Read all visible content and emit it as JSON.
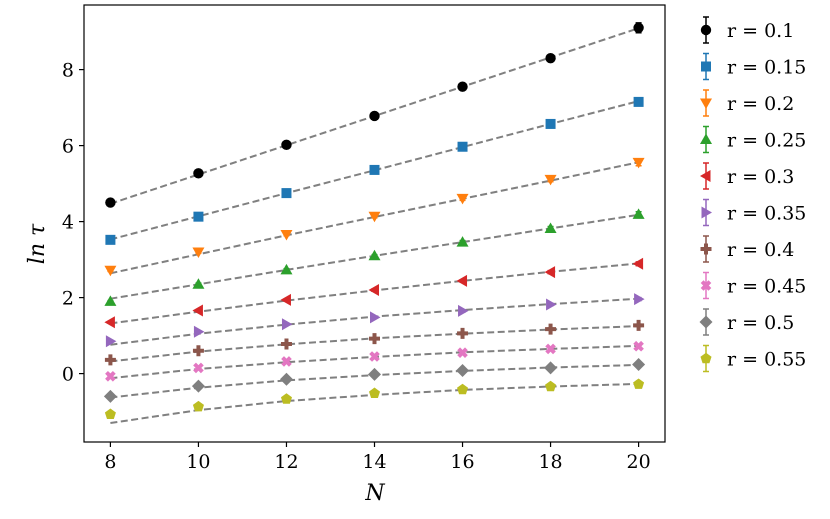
{
  "chart_data": {
    "type": "scatter",
    "xlabel": "N",
    "ylabel": "ln τ",
    "xlim": [
      7.4,
      20.6
    ],
    "ylim": [
      -1.8,
      9.7
    ],
    "x_ticks": [
      8,
      10,
      12,
      14,
      16,
      18,
      20
    ],
    "y_ticks": [
      0,
      2,
      4,
      6,
      8
    ],
    "x": [
      8,
      10,
      12,
      14,
      16,
      18,
      20
    ],
    "grid": false,
    "legend_position": "outside-right",
    "fit_line_color": "#808080",
    "series": [
      {
        "name": "r = 0.1",
        "r": "0.1",
        "color": "#000000",
        "marker": "circle",
        "values": [
          4.5,
          5.27,
          6.02,
          6.78,
          7.55,
          8.3,
          9.1
        ],
        "errors": [
          0.03,
          0.03,
          0.03,
          0.04,
          0.05,
          0.06,
          0.13
        ],
        "fit": [
          4.47,
          5.24,
          6.01,
          6.78,
          7.55,
          8.32,
          9.09
        ]
      },
      {
        "name": "r = 0.15",
        "r": "0.15",
        "color": "#1f77b4",
        "marker": "square",
        "values": [
          3.52,
          4.13,
          4.75,
          5.36,
          5.97,
          6.57,
          7.15
        ],
        "errors": [
          0.03,
          0.03,
          0.03,
          0.04,
          0.04,
          0.06,
          0.1
        ],
        "fit": [
          3.53,
          4.14,
          4.75,
          5.35,
          5.96,
          6.57,
          7.17
        ]
      },
      {
        "name": "r = 0.2",
        "r": "0.2",
        "color": "#ff7f0e",
        "marker": "triangle-down",
        "values": [
          2.72,
          3.2,
          3.66,
          4.14,
          4.61,
          5.11,
          5.56
        ],
        "errors": [
          0.03,
          0.03,
          0.03,
          0.04,
          0.05,
          0.06,
          0.09
        ],
        "fit": [
          2.64,
          3.14,
          3.64,
          4.12,
          4.6,
          5.08,
          5.56
        ]
      },
      {
        "name": "r = 0.25",
        "r": "0.25",
        "color": "#2ca02c",
        "marker": "triangle-up",
        "values": [
          1.9,
          2.35,
          2.73,
          3.1,
          3.46,
          3.82,
          4.19
        ],
        "errors": [
          0.02,
          0.03,
          0.03,
          0.03,
          0.04,
          0.05,
          0.07
        ],
        "fit": [
          1.97,
          2.35,
          2.73,
          3.1,
          3.46,
          3.82,
          4.18
        ]
      },
      {
        "name": "r = 0.3",
        "r": "0.3",
        "color": "#d62728",
        "marker": "triangle-left",
        "values": [
          1.35,
          1.66,
          1.94,
          2.2,
          2.44,
          2.67,
          2.89
        ],
        "errors": [
          0.02,
          0.02,
          0.02,
          0.03,
          0.03,
          0.04,
          0.05
        ],
        "fit": [
          1.32,
          1.63,
          1.92,
          2.19,
          2.44,
          2.68,
          2.9
        ]
      },
      {
        "name": "r = 0.35",
        "r": "0.35",
        "color": "#9467bd",
        "marker": "triangle-right",
        "values": [
          0.85,
          1.1,
          1.3,
          1.48,
          1.65,
          1.82,
          1.96
        ],
        "errors": [
          0.02,
          0.02,
          0.02,
          0.02,
          0.03,
          0.03,
          0.04
        ],
        "fit": [
          0.76,
          1.05,
          1.29,
          1.5,
          1.67,
          1.83,
          1.97
        ]
      },
      {
        "name": "r = 0.4",
        "r": "0.4",
        "color": "#8c564b",
        "marker": "plus",
        "values": [
          0.36,
          0.6,
          0.78,
          0.92,
          1.06,
          1.17,
          1.27
        ],
        "errors": [
          0.02,
          0.02,
          0.02,
          0.02,
          0.03,
          0.03,
          0.03
        ],
        "fit": [
          0.32,
          0.58,
          0.77,
          0.93,
          1.05,
          1.16,
          1.25
        ]
      },
      {
        "name": "r = 0.45",
        "r": "0.45",
        "color": "#e377c2",
        "marker": "x",
        "values": [
          -0.07,
          0.15,
          0.32,
          0.45,
          0.55,
          0.65,
          0.72
        ],
        "errors": [
          0.02,
          0.02,
          0.02,
          0.02,
          0.02,
          0.03,
          0.03
        ],
        "fit": [
          -0.12,
          0.12,
          0.3,
          0.44,
          0.56,
          0.65,
          0.73
        ]
      },
      {
        "name": "r = 0.5",
        "r": "0.5",
        "color": "#7f7f7f",
        "marker": "diamond",
        "values": [
          -0.6,
          -0.33,
          -0.15,
          -0.02,
          0.08,
          0.15,
          0.24
        ],
        "errors": [
          0.02,
          0.02,
          0.02,
          0.02,
          0.02,
          0.02,
          0.03
        ],
        "fit": [
          -0.63,
          -0.37,
          -0.18,
          -0.04,
          0.07,
          0.16,
          0.23
        ]
      },
      {
        "name": "r = 0.55",
        "r": "0.55",
        "color": "#bcbd22",
        "marker": "pentagon",
        "values": [
          -1.07,
          -0.87,
          -0.67,
          -0.52,
          -0.42,
          -0.34,
          -0.28
        ],
        "errors": [
          0.02,
          0.02,
          0.02,
          0.02,
          0.02,
          0.02,
          0.02
        ],
        "fit": [
          -1.3,
          -0.96,
          -0.72,
          -0.56,
          -0.43,
          -0.34,
          -0.27
        ]
      }
    ]
  }
}
